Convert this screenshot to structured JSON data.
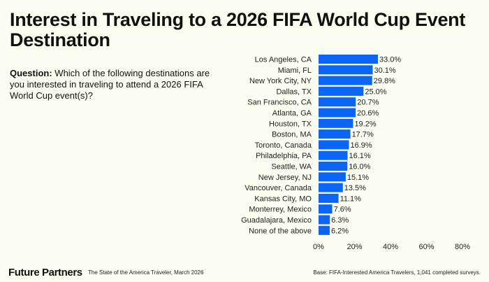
{
  "title": "Interest in Traveling to a 2026 FIFA World Cup Event Destination",
  "question": {
    "label": "Question:",
    "text": "Which of the following destinations are you interested in traveling to attend a 2026 FIFA World Cup event(s)?"
  },
  "chart_data": {
    "type": "bar",
    "orientation": "horizontal",
    "categories": [
      "Los Angeles, CA",
      "Miami, FL",
      "New York City, NY",
      "Dallas, TX",
      "San Francisco, CA",
      "Atlanta, GA",
      "Houston, TX",
      "Boston, MA",
      "Toronto, Canada",
      "Philadelphia, PA",
      "Seattle, WA",
      "New Jersey, NJ",
      "Vancouver, Canada",
      "Kansas City, MO",
      "Monterrey, Mexico",
      "Guadalajara, Mexico",
      "None of the above"
    ],
    "values": [
      33.0,
      30.1,
      29.8,
      25.0,
      20.7,
      20.6,
      19.2,
      17.7,
      16.9,
      16.1,
      16.0,
      15.1,
      13.5,
      11.1,
      7.6,
      6.3,
      6.2
    ],
    "data_labels": [
      "33.0%",
      "30.1%",
      "29.8%",
      "25.0%",
      "20.7%",
      "20.6%",
      "19.2%",
      "17.7%",
      "16.9%",
      "16.1%",
      "16.0%",
      "15.1%",
      "13.5%",
      "11.1%",
      "7.6%",
      "6.3%",
      "6.2%"
    ],
    "xlim": [
      0,
      80
    ],
    "xticks": [
      "0%",
      "20%",
      "40%",
      "60%",
      "80%"
    ],
    "grid": false,
    "bar_color": "#0a64f5"
  },
  "footer": {
    "brand": "Future Partners",
    "source": "The State of the America Traveler, March 2026",
    "base": "Base: FIFA-Interested America Travelers, 1,041 completed surveys."
  }
}
